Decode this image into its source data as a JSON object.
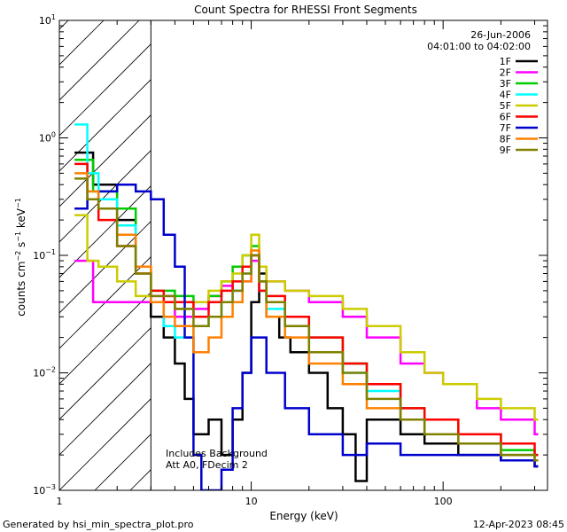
{
  "chart_data": {
    "type": "line",
    "title": "Count Spectra for RHESSI Front Segments",
    "xlabel": "Energy (keV)",
    "ylabel_main": "counts cm",
    "ylabel_exp1": "−2",
    "ylabel_mid": " s",
    "ylabel_exp2": "−1",
    "ylabel_end": " keV",
    "ylabel_exp3": "−1",
    "x_scale": "log",
    "y_scale": "log",
    "xlim": [
      1,
      350
    ],
    "ylim": [
      0.001,
      10
    ],
    "x_ticks": [
      {
        "value": 1,
        "label": "1"
      },
      {
        "value": 10,
        "label": "10"
      },
      {
        "value": 100,
        "label": "100"
      }
    ],
    "y_ticks": [
      {
        "value": 0.001,
        "base": "10",
        "exp": "−3"
      },
      {
        "value": 0.01,
        "base": "10",
        "exp": "−2"
      },
      {
        "value": 0.1,
        "base": "10",
        "exp": "−1"
      },
      {
        "value": 1,
        "base": "10",
        "exp": "0"
      },
      {
        "value": 10,
        "base": "10",
        "exp": "1"
      }
    ],
    "hatched_region": {
      "x_min": 1,
      "x_max": 3
    },
    "date": "26-Jun-2006",
    "time_range": "04:01:00 to 04:02:00",
    "annotation_line1": "Includes Background",
    "annotation_line2": "Att A0, FDecim 2",
    "series": [
      {
        "name": "1F",
        "color": "#000000",
        "points": [
          [
            1.2,
            0.75
          ],
          [
            1.5,
            0.4
          ],
          [
            2,
            0.2
          ],
          [
            2.5,
            0.08
          ],
          [
            3,
            0.03
          ],
          [
            3.5,
            0.02
          ],
          [
            4,
            0.012
          ],
          [
            4.5,
            0.006
          ],
          [
            5,
            0.003
          ],
          [
            6,
            0.004
          ],
          [
            7,
            0.002
          ],
          [
            8,
            0.004
          ],
          [
            9,
            0.01
          ],
          [
            10,
            0.04
          ],
          [
            11,
            0.07
          ],
          [
            12,
            0.03
          ],
          [
            14,
            0.02
          ],
          [
            16,
            0.015
          ],
          [
            20,
            0.01
          ],
          [
            25,
            0.005
          ],
          [
            30,
            0.003
          ],
          [
            35,
            0.0012
          ],
          [
            40,
            0.004
          ],
          [
            60,
            0.003
          ],
          [
            80,
            0.0025
          ],
          [
            120,
            0.002
          ],
          [
            200,
            0.0018
          ],
          [
            300,
            0.0016
          ]
        ]
      },
      {
        "name": "2F",
        "color": "#ff00ff",
        "points": [
          [
            1.2,
            0.09
          ],
          [
            1.5,
            0.04
          ],
          [
            2,
            0.04
          ],
          [
            3,
            0.045
          ],
          [
            4,
            0.03
          ],
          [
            5,
            0.035
          ],
          [
            6,
            0.045
          ],
          [
            7,
            0.055
          ],
          [
            8,
            0.05
          ],
          [
            9,
            0.06
          ],
          [
            10,
            0.09
          ],
          [
            11,
            0.05
          ],
          [
            12,
            0.06
          ],
          [
            15,
            0.05
          ],
          [
            20,
            0.04
          ],
          [
            30,
            0.03
          ],
          [
            40,
            0.02
          ],
          [
            60,
            0.012
          ],
          [
            80,
            0.01
          ],
          [
            100,
            0.008
          ],
          [
            150,
            0.005
          ],
          [
            200,
            0.004
          ],
          [
            300,
            0.003
          ]
        ]
      },
      {
        "name": "3F",
        "color": "#00cc00",
        "points": [
          [
            1.2,
            0.65
          ],
          [
            1.5,
            0.35
          ],
          [
            2,
            0.25
          ],
          [
            2.5,
            0.08
          ],
          [
            3,
            0.05
          ],
          [
            4,
            0.045
          ],
          [
            5,
            0.04
          ],
          [
            6,
            0.045
          ],
          [
            7,
            0.06
          ],
          [
            8,
            0.08
          ],
          [
            9,
            0.1
          ],
          [
            10,
            0.12
          ],
          [
            11,
            0.06
          ],
          [
            12,
            0.04
          ],
          [
            15,
            0.03
          ],
          [
            20,
            0.02
          ],
          [
            30,
            0.012
          ],
          [
            40,
            0.008
          ],
          [
            60,
            0.005
          ],
          [
            80,
            0.004
          ],
          [
            120,
            0.003
          ],
          [
            200,
            0.0022
          ],
          [
            300,
            0.002
          ]
        ]
      },
      {
        "name": "4F",
        "color": "#00ffff",
        "points": [
          [
            1.2,
            1.3
          ],
          [
            1.4,
            0.5
          ],
          [
            1.6,
            0.3
          ],
          [
            2,
            0.18
          ],
          [
            2.5,
            0.08
          ],
          [
            3,
            0.04
          ],
          [
            3.5,
            0.025
          ],
          [
            4,
            0.02
          ],
          [
            5,
            0.025
          ],
          [
            6,
            0.03
          ],
          [
            7,
            0.04
          ],
          [
            8,
            0.05
          ],
          [
            9,
            0.07
          ],
          [
            10,
            0.1
          ],
          [
            11,
            0.05
          ],
          [
            12,
            0.035
          ],
          [
            15,
            0.025
          ],
          [
            20,
            0.015
          ],
          [
            30,
            0.01
          ],
          [
            40,
            0.007
          ],
          [
            60,
            0.004
          ],
          [
            80,
            0.003
          ],
          [
            120,
            0.0025
          ],
          [
            200,
            0.002
          ],
          [
            300,
            0.0018
          ]
        ]
      },
      {
        "name": "5F",
        "color": "#cccc00",
        "points": [
          [
            1.2,
            0.22
          ],
          [
            1.4,
            0.09
          ],
          [
            1.6,
            0.08
          ],
          [
            2,
            0.06
          ],
          [
            2.5,
            0.045
          ],
          [
            3,
            0.04
          ],
          [
            4,
            0.035
          ],
          [
            5,
            0.04
          ],
          [
            6,
            0.05
          ],
          [
            7,
            0.06
          ],
          [
            8,
            0.07
          ],
          [
            9,
            0.1
          ],
          [
            10,
            0.15
          ],
          [
            11,
            0.08
          ],
          [
            12,
            0.06
          ],
          [
            15,
            0.05
          ],
          [
            20,
            0.045
          ],
          [
            30,
            0.035
          ],
          [
            40,
            0.025
          ],
          [
            60,
            0.015
          ],
          [
            80,
            0.01
          ],
          [
            100,
            0.008
          ],
          [
            150,
            0.006
          ],
          [
            200,
            0.005
          ],
          [
            300,
            0.004
          ]
        ]
      },
      {
        "name": "6F",
        "color": "#ff0000",
        "points": [
          [
            1.2,
            0.6
          ],
          [
            1.4,
            0.3
          ],
          [
            1.6,
            0.2
          ],
          [
            2,
            0.12
          ],
          [
            2.5,
            0.07
          ],
          [
            3,
            0.05
          ],
          [
            3.5,
            0.04
          ],
          [
            4,
            0.04
          ],
          [
            5,
            0.03
          ],
          [
            6,
            0.04
          ],
          [
            7,
            0.05
          ],
          [
            8,
            0.06
          ],
          [
            9,
            0.08
          ],
          [
            10,
            0.1
          ],
          [
            11,
            0.05
          ],
          [
            12,
            0.045
          ],
          [
            15,
            0.03
          ],
          [
            20,
            0.02
          ],
          [
            30,
            0.012
          ],
          [
            40,
            0.008
          ],
          [
            60,
            0.005
          ],
          [
            80,
            0.004
          ],
          [
            120,
            0.003
          ],
          [
            200,
            0.0025
          ],
          [
            300,
            0.002
          ]
        ]
      },
      {
        "name": "7F",
        "color": "#0000cc",
        "points": [
          [
            1.2,
            0.25
          ],
          [
            1.4,
            0.3
          ],
          [
            1.6,
            0.35
          ],
          [
            2,
            0.4
          ],
          [
            2.5,
            0.35
          ],
          [
            3,
            0.3
          ],
          [
            3.5,
            0.15
          ],
          [
            4,
            0.08
          ],
          [
            4.5,
            0.02
          ],
          [
            5,
            0.002
          ],
          [
            5.5,
            0.001
          ],
          [
            6,
            0.001
          ],
          [
            7,
            0.0015
          ],
          [
            8,
            0.005
          ],
          [
            9,
            0.01
          ],
          [
            10,
            0.02
          ],
          [
            12,
            0.01
          ],
          [
            15,
            0.005
          ],
          [
            20,
            0.003
          ],
          [
            30,
            0.002
          ],
          [
            40,
            0.0025
          ],
          [
            60,
            0.002
          ],
          [
            100,
            0.002
          ],
          [
            200,
            0.0018
          ],
          [
            300,
            0.0016
          ]
        ]
      },
      {
        "name": "8F",
        "color": "#ff8000",
        "points": [
          [
            1.2,
            0.5
          ],
          [
            1.4,
            0.35
          ],
          [
            1.6,
            0.25
          ],
          [
            2,
            0.15
          ],
          [
            2.5,
            0.08
          ],
          [
            3,
            0.04
          ],
          [
            3.5,
            0.03
          ],
          [
            4,
            0.025
          ],
          [
            5,
            0.015
          ],
          [
            6,
            0.02
          ],
          [
            7,
            0.03
          ],
          [
            8,
            0.04
          ],
          [
            9,
            0.06
          ],
          [
            10,
            0.11
          ],
          [
            11,
            0.06
          ],
          [
            12,
            0.03
          ],
          [
            15,
            0.02
          ],
          [
            20,
            0.012
          ],
          [
            30,
            0.008
          ],
          [
            40,
            0.005
          ],
          [
            60,
            0.004
          ],
          [
            80,
            0.003
          ],
          [
            120,
            0.0025
          ],
          [
            200,
            0.002
          ],
          [
            300,
            0.0018
          ]
        ]
      },
      {
        "name": "9F",
        "color": "#808000",
        "points": [
          [
            1.2,
            0.45
          ],
          [
            1.4,
            0.3
          ],
          [
            1.6,
            0.25
          ],
          [
            2,
            0.12
          ],
          [
            2.5,
            0.07
          ],
          [
            3,
            0.045
          ],
          [
            4,
            0.035
          ],
          [
            5,
            0.025
          ],
          [
            6,
            0.03
          ],
          [
            7,
            0.04
          ],
          [
            8,
            0.05
          ],
          [
            9,
            0.07
          ],
          [
            10,
            0.1
          ],
          [
            11,
            0.06
          ],
          [
            12,
            0.04
          ],
          [
            15,
            0.025
          ],
          [
            20,
            0.015
          ],
          [
            30,
            0.01
          ],
          [
            40,
            0.006
          ],
          [
            60,
            0.004
          ],
          [
            80,
            0.003
          ],
          [
            120,
            0.0025
          ],
          [
            200,
            0.002
          ],
          [
            300,
            0.0018
          ]
        ]
      }
    ]
  },
  "footer": {
    "left": "Generated by hsi_min_spectra_plot.pro",
    "right": "12-Apr-2023 08:45"
  }
}
